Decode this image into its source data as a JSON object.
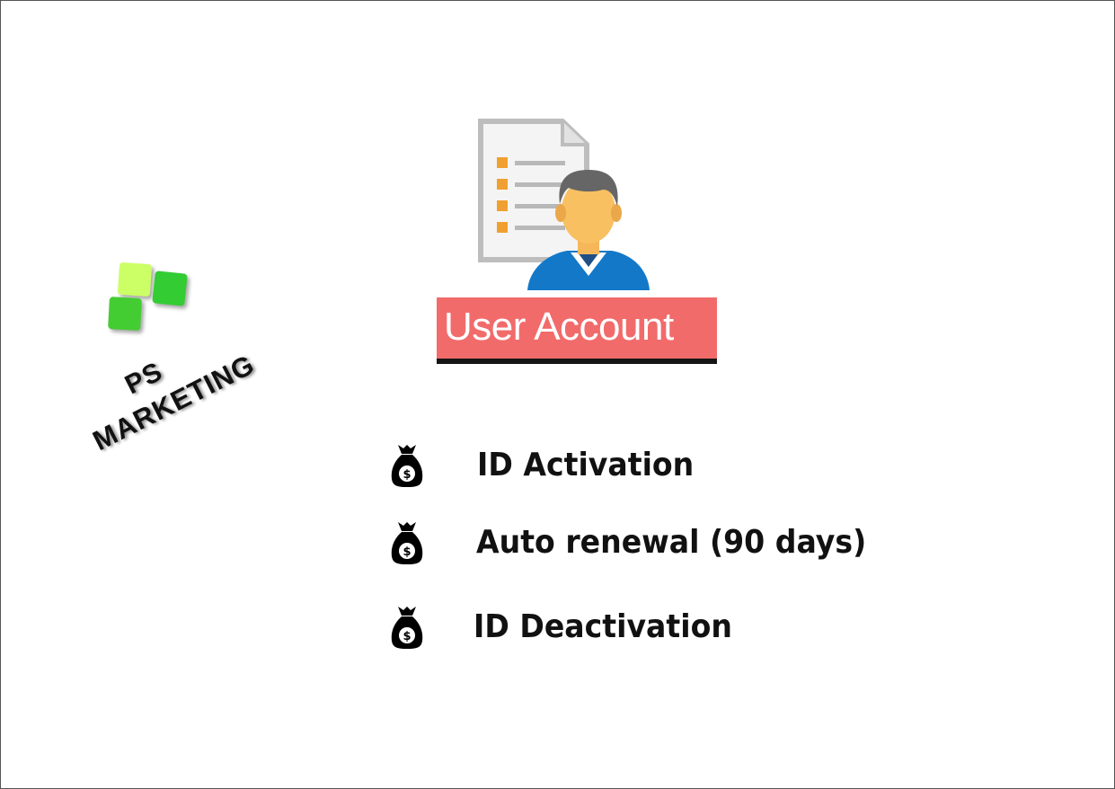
{
  "logo": {
    "line1": "PS",
    "line2": "MARKETING"
  },
  "banner": {
    "title": "User Account"
  },
  "features": [
    {
      "icon": "money-bag-icon",
      "label": "ID Activation"
    },
    {
      "icon": "money-bag-icon",
      "label": "Auto renewal (90 days)"
    },
    {
      "icon": "money-bag-icon",
      "label": "ID Deactivation"
    }
  ],
  "colors": {
    "banner_bg": "#f26b6b",
    "banner_text": "#ffffff",
    "logo_light_green": "#ccff66",
    "logo_green": "#33cc33",
    "text": "#111111"
  }
}
